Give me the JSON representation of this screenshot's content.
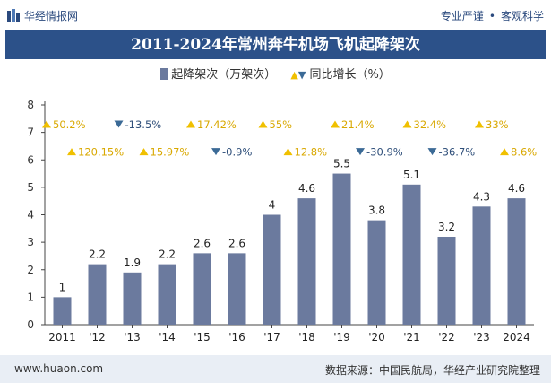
{
  "header": {
    "brand": "华经情报网",
    "slogan_left": "专业严谨",
    "slogan_right": "客观科学"
  },
  "title": "2011-2024年常州奔牛机场飞机起降架次",
  "legend": {
    "bar_label": "起降架次（万架次）",
    "growth_label": "同比增长（%）"
  },
  "footer": {
    "url": "www.huaon.com",
    "source": "数据来源：中国民航局，华经产业研究院整理"
  },
  "colors": {
    "bar": "#6b7a9e",
    "up": "#f0c000",
    "down": "#3b6a96",
    "title_bg": "#2c5189"
  },
  "chart_data": {
    "type": "bar",
    "categories": [
      "2011",
      "'12",
      "'13",
      "'14",
      "'15",
      "'16",
      "'17",
      "'18",
      "'19",
      "'20",
      "'21",
      "'22",
      "'23",
      "2024"
    ],
    "series": [
      {
        "name": "起降架次（万架次）",
        "values": [
          1,
          2.2,
          1.9,
          2.2,
          2.6,
          2.6,
          4,
          4.6,
          5.5,
          3.8,
          5.1,
          3.2,
          4.3,
          4.6
        ]
      }
    ],
    "growth": [
      {
        "label": "50.2%",
        "dir": "up"
      },
      {
        "label": "120.15%",
        "dir": "up"
      },
      {
        "label": "-13.5%",
        "dir": "down"
      },
      {
        "label": "15.97%",
        "dir": "up"
      },
      {
        "label": "17.42%",
        "dir": "up"
      },
      {
        "label": "-0.9%",
        "dir": "down"
      },
      {
        "label": "55%",
        "dir": "up"
      },
      {
        "label": "12.8%",
        "dir": "up"
      },
      {
        "label": "21.4%",
        "dir": "up"
      },
      {
        "label": "-30.9%",
        "dir": "down"
      },
      {
        "label": "32.4%",
        "dir": "up"
      },
      {
        "label": "-36.7%",
        "dir": "down"
      },
      {
        "label": "33%",
        "dir": "up"
      },
      {
        "label": "8.6%",
        "dir": "up"
      }
    ],
    "yticks": [
      0,
      1,
      2,
      3,
      4,
      5,
      6,
      7,
      8
    ],
    "ylim": [
      0,
      8
    ],
    "xlabel": "",
    "ylabel": ""
  }
}
